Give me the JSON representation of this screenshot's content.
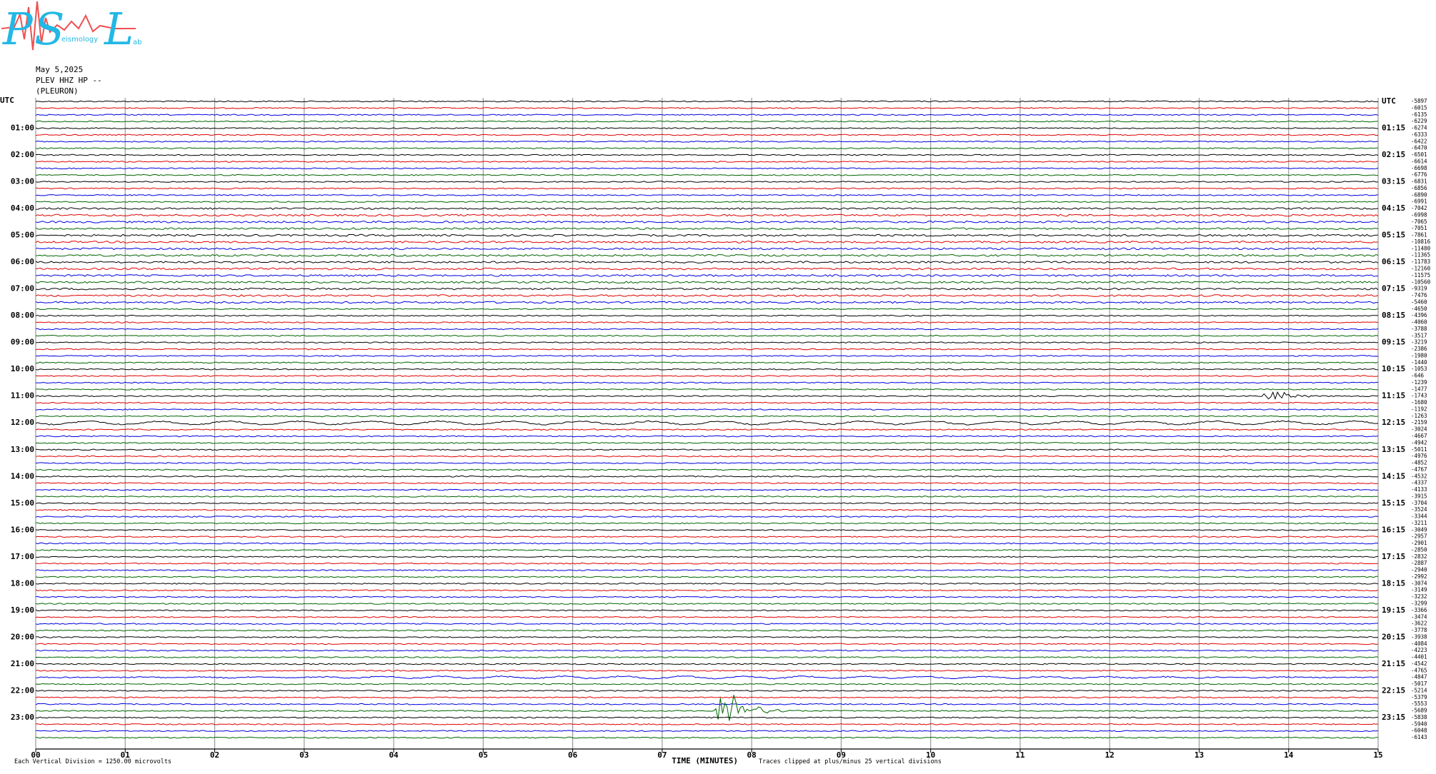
{
  "chart_data": {
    "type": "helicorder",
    "logo": {
      "letters": [
        "P",
        "S",
        "L"
      ],
      "words": [
        "eismology",
        "ab"
      ]
    },
    "date": "May 5,2025",
    "channel": "PLEV HHZ HP --",
    "station": "(PLEURON)",
    "x_label": "TIME (MINUTES)",
    "scale_note": "Each Vertical Division = 1250.00 microvolts",
    "clip_note": "Traces clipped at plus/minus 25 vertical divisions",
    "xlim": [
      0,
      15
    ],
    "xticks": [
      {
        "value": 0,
        "label": "00"
      },
      {
        "value": 1,
        "label": "01"
      },
      {
        "value": 2,
        "label": "02"
      },
      {
        "value": 3,
        "label": "03"
      },
      {
        "value": 4,
        "label": "04"
      },
      {
        "value": 5,
        "label": "05"
      },
      {
        "value": 6,
        "label": "06"
      },
      {
        "value": 7,
        "label": "07"
      },
      {
        "value": 8,
        "label": "08"
      },
      {
        "value": 9,
        "label": "09"
      },
      10,
      11,
      12,
      13,
      14,
      15
    ],
    "grid": true,
    "trace_colors": [
      "#000000",
      "#e00000",
      "#0000e0",
      "#006400"
    ],
    "left_labels": [
      "UTC",
      "01:00",
      "02:00",
      "03:00",
      "04:00",
      "05:00",
      "06:00",
      "07:00",
      "08:00",
      "09:00",
      "10:00",
      "11:00",
      "12:00",
      "13:00",
      "14:00",
      "15:00",
      "16:00",
      "17:00",
      "18:00",
      "19:00",
      "20:00",
      "21:00",
      "22:00",
      "23:00"
    ],
    "right_labels": [
      "UTC",
      "01:15",
      "02:15",
      "03:15",
      "04:15",
      "05:15",
      "06:15",
      "07:15",
      "08:15",
      "09:15",
      "10:15",
      "11:15",
      "12:15",
      "13:15",
      "14:15",
      "15:15",
      "16:15",
      "17:15",
      "18:15",
      "19:15",
      "20:15",
      "21:15",
      "22:15",
      "23:15"
    ],
    "trace_offsets": [
      -5897,
      -6015,
      -6135,
      -6229,
      -6274,
      -6333,
      -6422,
      -6470,
      -6501,
      -6614,
      -6698,
      -6776,
      -6831,
      -6856,
      -6890,
      -6991,
      -7042,
      -6998,
      -7065,
      -7051,
      -7861,
      -10816,
      -11480,
      -11365,
      -11783,
      -12160,
      -11575,
      -10560,
      -9319,
      -7476,
      -5460,
      -4650,
      -4396,
      -4060,
      -3788,
      -3517,
      -3219,
      -2386,
      -1980,
      -1440,
      -1053,
      -646,
      -1239,
      -1477,
      -1743,
      -1680,
      -1192,
      -1263,
      -2159,
      -3024,
      -4667,
      -4942,
      -5011,
      -4976,
      -4852,
      -4767,
      -4532,
      -4337,
      -4133,
      -3915,
      -3704,
      -3524,
      -3344,
      -3211,
      -3049,
      -2957,
      -2901,
      -2850,
      -2832,
      -2887,
      -2940,
      -2992,
      -3074,
      -3149,
      -3232,
      -3299,
      -3366,
      -3474,
      -3622,
      -3778,
      -3938,
      -4084,
      -4223,
      -4401,
      -4542,
      -4765,
      -4847,
      -5017,
      -5214,
      -5379,
      -5553,
      -5689,
      -5838,
      -5940,
      -6048,
      -6143
    ]
  }
}
